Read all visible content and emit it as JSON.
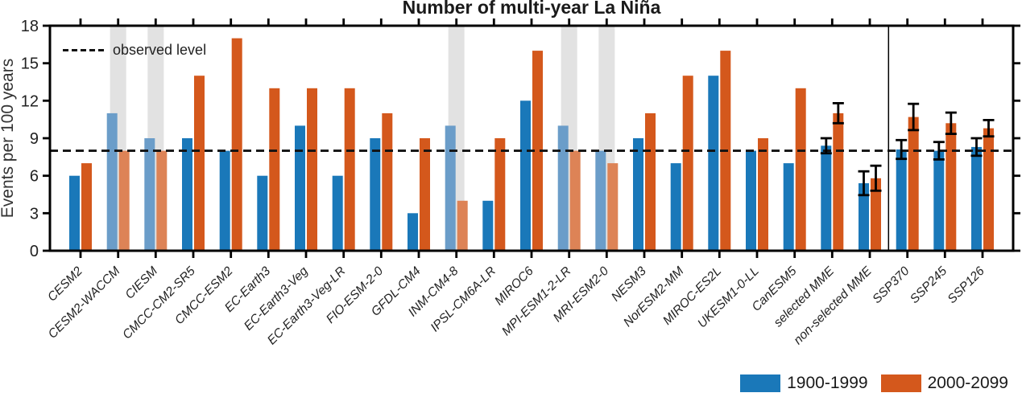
{
  "chart_data": {
    "type": "bar",
    "title": "Number of multi-year La Niña",
    "ylabel": "Events per 100 years",
    "xlabel": "",
    "ylim": [
      0,
      18
    ],
    "yticks": [
      0,
      3,
      6,
      9,
      12,
      15,
      18
    ],
    "grid": false,
    "legend_position": "bottom-right",
    "annotation": {
      "label": "observed level",
      "value": 8
    },
    "categories": [
      "CESM2",
      "CESM2-WACCM",
      "CIESM",
      "CMCC-CM2-SR5",
      "CMCC-ESM2",
      "EC-Earth3",
      "EC-Earth3-Veg",
      "EC-Earth3-Veg-LR",
      "FIO-ESM-2-0",
      "GFDL-CM4",
      "INM-CM4-8",
      "IPSL-CM6A-LR",
      "MIROC6",
      "MPI-ESM1-2-LR",
      "MRI-ESM2-0",
      "NESM3",
      "NorESM2-MM",
      "MIROC-ES2L",
      "UKESM1-0-LL",
      "CanESM5",
      "selected MME",
      "non-selected MME",
      "SSP370",
      "SSP245",
      "SSP126"
    ],
    "series": [
      {
        "name": "1900-1999",
        "color": "#1a78b9",
        "muted_color": "#6b9dc9",
        "values": [
          6,
          11,
          9,
          9,
          8,
          6,
          10,
          6,
          9,
          3,
          10,
          4,
          12,
          10,
          8,
          9,
          7,
          14,
          8,
          7,
          8.4,
          5.4,
          8.1,
          8.0,
          8.3
        ],
        "errors": [
          null,
          null,
          null,
          null,
          null,
          null,
          null,
          null,
          null,
          null,
          null,
          null,
          null,
          null,
          null,
          null,
          null,
          null,
          null,
          null,
          0.6,
          0.95,
          0.75,
          0.7,
          0.7
        ]
      },
      {
        "name": "2000-2099",
        "color": "#d4581c",
        "muted_color": "#dd8356",
        "values": [
          7,
          8,
          8,
          14,
          17,
          13,
          13,
          13,
          11,
          9,
          4,
          9,
          16,
          8,
          7,
          11,
          14,
          16,
          9,
          13,
          11.0,
          5.8,
          10.7,
          10.2,
          9.8
        ],
        "errors": [
          null,
          null,
          null,
          null,
          null,
          null,
          null,
          null,
          null,
          null,
          null,
          null,
          null,
          null,
          null,
          null,
          null,
          null,
          null,
          null,
          0.8,
          1.0,
          1.05,
          0.85,
          0.65
        ]
      }
    ],
    "shaded_categories": [
      "CESM2-WACCM",
      "CIESM",
      "INM-CM4-8",
      "MPI-ESM1-2-LR",
      "MRI-ESM2-0"
    ],
    "separator_after": "non-selected MME"
  },
  "colors": {
    "axis": "#000000",
    "band": "#e2e2e2",
    "observed_line": "#111111",
    "error_bar": "#000000"
  }
}
